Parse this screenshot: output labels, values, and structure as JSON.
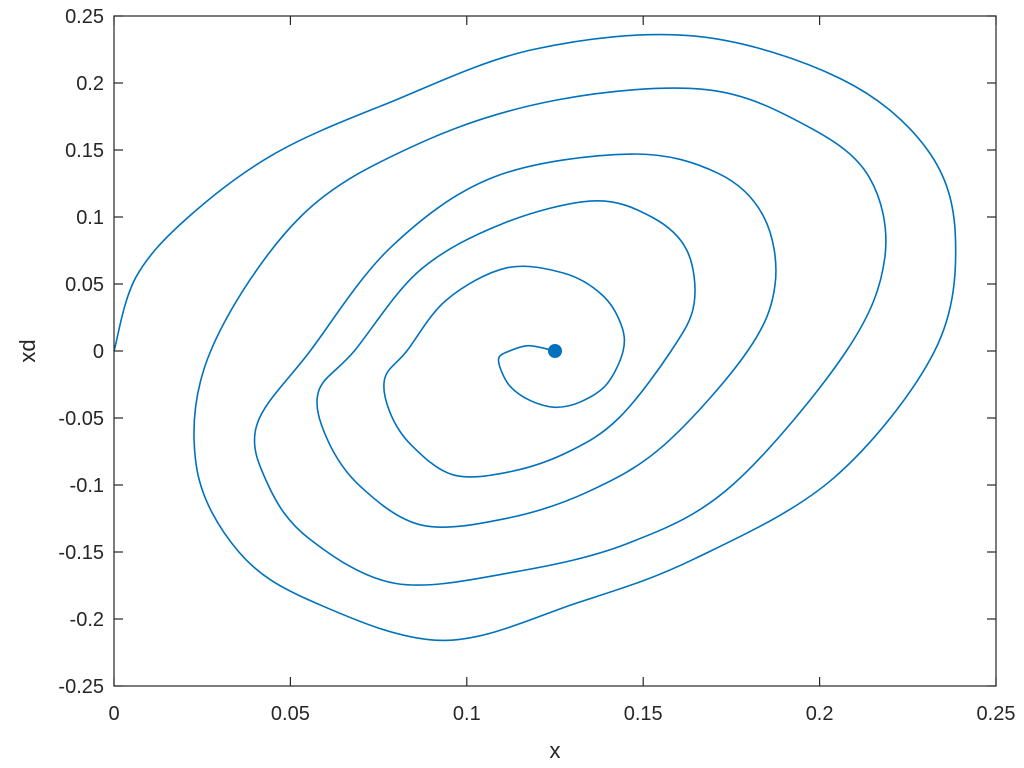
{
  "chart_data": {
    "type": "line",
    "title": "",
    "xlabel": "x",
    "ylabel": "xd",
    "xlim": [
      0,
      0.25
    ],
    "ylim": [
      -0.25,
      0.25
    ],
    "grid": false,
    "x_ticks": [
      {
        "value": 0,
        "label": "0"
      },
      {
        "value": 0.05,
        "label": "0.05"
      },
      {
        "value": 0.1,
        "label": "0.1"
      },
      {
        "value": 0.15,
        "label": "0.15"
      },
      {
        "value": 0.2,
        "label": "0.2"
      },
      {
        "value": 0.25,
        "label": "0.25"
      }
    ],
    "y_ticks": [
      {
        "value": -0.25,
        "label": "-0.25"
      },
      {
        "value": -0.2,
        "label": "-0.2"
      },
      {
        "value": -0.15,
        "label": "-0.15"
      },
      {
        "value": -0.1,
        "label": "-0.1"
      },
      {
        "value": -0.05,
        "label": "-0.05"
      },
      {
        "value": 0,
        "label": "0"
      },
      {
        "value": 0.05,
        "label": "0.05"
      },
      {
        "value": 0.1,
        "label": "0.1"
      },
      {
        "value": 0.15,
        "label": "0.15"
      },
      {
        "value": 0.2,
        "label": "0.2"
      },
      {
        "value": 0.25,
        "label": "0.25"
      }
    ],
    "series": [
      {
        "color": "#0072BD",
        "x": [
          0,
          0.0062,
          0.0211,
          0.0457,
          0.0777,
          0.1188,
          0.1646,
          0.2061,
          0.2306,
          0.2385,
          0.2326,
          0.2039,
          0.1646,
          0.1318,
          0.0934,
          0.0567,
          0.0354,
          0.0233,
          0.0274,
          0.0528,
          0.0866,
          0.1259,
          0.168,
          0.1967,
          0.214,
          0.2185,
          0.2076,
          0.1753,
          0.1462,
          0.1133,
          0.0799,
          0.0553,
          0.0437,
          0.0405,
          0.0556,
          0.0785,
          0.1079,
          0.1468,
          0.1713,
          0.1842,
          0.1874,
          0.1796,
          0.156,
          0.1344,
          0.1111,
          0.0873,
          0.0698,
          0.0603,
          0.058,
          0.0681,
          0.0866,
          0.1101,
          0.1359,
          0.1524,
          0.1624,
          0.1644,
          0.1579,
          0.1431,
          0.129,
          0.1124,
          0.0962,
          0.0842,
          0.0781,
          0.0768,
          0.083,
          0.0942,
          0.1112,
          0.1276,
          0.1383,
          0.1437,
          0.1443,
          0.1396,
          0.1322,
          0.125,
          0.118,
          0.1125,
          0.1098,
          0.1091,
          0.1121,
          0.1176,
          0.125
        ],
        "y": [
          0,
          0.055,
          0.1,
          0.1475,
          0.185,
          0.225,
          0.235,
          0.203,
          0.15,
          0.085,
          0.0,
          -0.095,
          -0.155,
          -0.1875,
          -0.216,
          -0.1875,
          -0.15,
          -0.085,
          0.0,
          0.1,
          0.155,
          0.1875,
          0.195,
          0.1675,
          0.13,
          0.07,
          0.0,
          -0.1,
          -0.143,
          -0.165,
          -0.1735,
          -0.14,
          -0.1,
          -0.055,
          0.0,
          0.0775,
          0.13,
          0.147,
          0.1325,
          0.1,
          0.05,
          0.0,
          -0.07,
          -0.105,
          -0.125,
          -0.13,
          -0.101,
          -0.065,
          -0.03,
          0.0,
          0.06,
          0.095,
          0.112,
          0.1,
          0.075,
          0.035,
          0.0,
          -0.05,
          -0.075,
          -0.09,
          -0.0925,
          -0.07,
          -0.045,
          -0.02,
          0.0,
          0.038,
          0.062,
          0.058,
          0.042,
          0.02,
          0.0,
          -0.025,
          -0.038,
          -0.042,
          -0.037,
          -0.027,
          -0.015,
          -0.005,
          0.0,
          0.004,
          0.0
        ]
      }
    ]
  }
}
